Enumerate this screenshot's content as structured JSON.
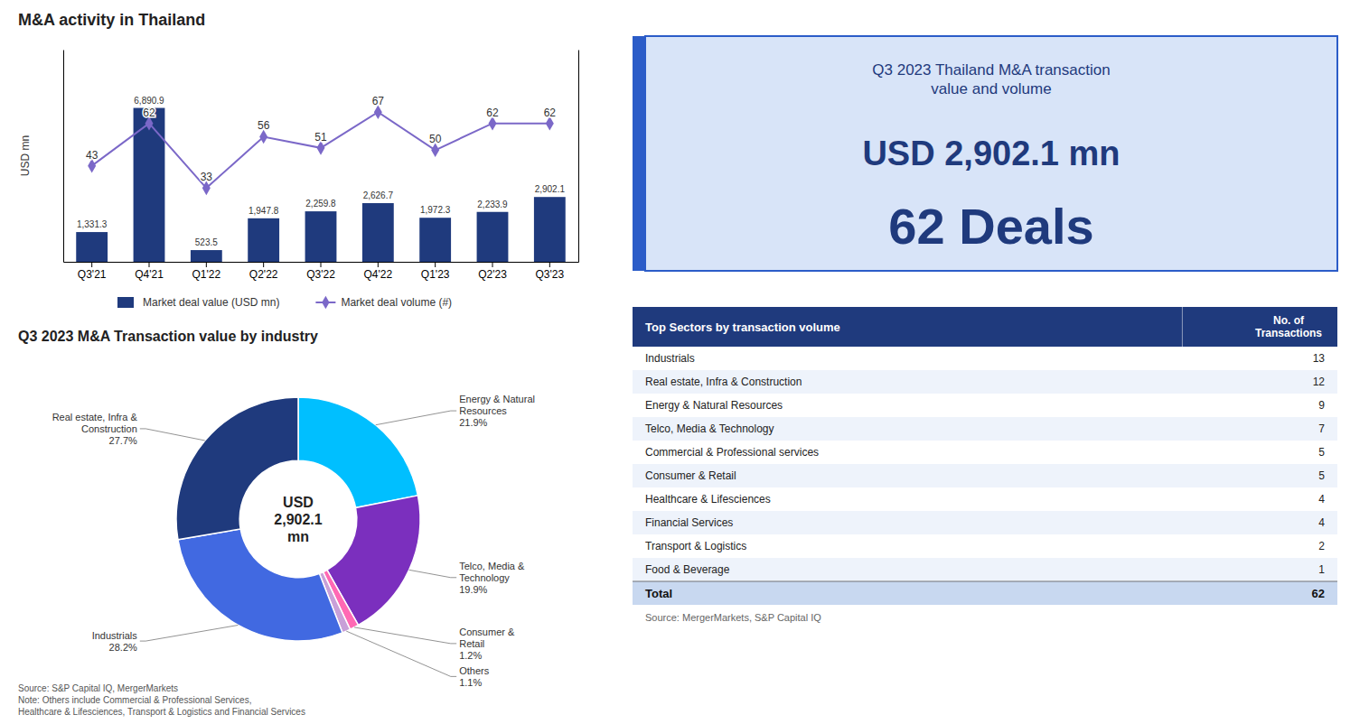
{
  "chart_data": [
    {
      "type": "bar",
      "title": "M&A activity in Thailand",
      "ylabel": "USD mn",
      "categories": [
        "Q3'21",
        "Q4'21",
        "Q1'22",
        "Q2'22",
        "Q3'22",
        "Q4'22",
        "Q1'23",
        "Q2'23",
        "Q3'23"
      ],
      "series": [
        {
          "name": "Market deal value (USD mn)",
          "type": "bar",
          "color": "#1F3A7D",
          "values": [
            1331.3,
            6890.9,
            523.5,
            1947.8,
            2259.8,
            2626.7,
            1972.3,
            2233.9,
            2902.1
          ],
          "value_labels": [
            "1,331.3",
            "6,890.9",
            "523.5",
            "1,947.8",
            "2,259.8",
            "2,626.7",
            "1,972.3",
            "2,233.9",
            "2,902.1"
          ]
        },
        {
          "name": "Market deal volume (#)",
          "type": "line",
          "color": "#7B68C8",
          "marker": "diamond",
          "axis": "y2",
          "values": [
            43,
            62,
            33,
            56,
            51,
            67,
            50,
            62,
            62
          ]
        }
      ],
      "ylim": [
        0,
        9500
      ],
      "y2lim": [
        0,
        95
      ],
      "tick_labels": "x",
      "data_labels": true,
      "legend": "bottom"
    },
    {
      "type": "donut",
      "title": "Q3 2023 M&A Transaction value by industry",
      "categories": [
        "Energy & Natural\nResources",
        "Telco, Media &\nTechnology",
        "Consumer &\nRetail",
        "Others",
        "Industrials",
        "Real estate, Infra &\nConstruction"
      ],
      "values": [
        21.9,
        19.9,
        1.2,
        1.1,
        28.2,
        27.7
      ],
      "value_labels": [
        "21.9%",
        "19.9%",
        "1.2%",
        "1.1%",
        "28.2%",
        "27.7%"
      ],
      "colors": [
        "#00BFFF",
        "#7B2FBE",
        "#FF69B4",
        "#C8A0D8",
        "#4169E1",
        "#1F3A7D"
      ],
      "data_labels": true,
      "annotation": "USD\n2,902.1\nmn",
      "source": "Source: S&P Capital IQ, MergerMarkets\nNote: Others include Commercial & Professional Services,\nHealthcare & Lifesciences, Transport & Logistics and Financial Services"
    },
    {
      "type": "info",
      "title": "Q3 2023 Thailand M&A transaction\nvalue and volume",
      "texts": [
        "USD 2,902.1 mn",
        "62 Deals"
      ],
      "colors": [
        "#2B5CC8",
        "#D8E4F8",
        "#1F3A7D"
      ]
    },
    {
      "type": "table",
      "columns": [
        "Top Sectors by transaction volume",
        "No. of\nTransactions"
      ],
      "rows": [
        [
          "Industrials",
          13
        ],
        [
          "Real estate, Infra & Construction",
          12
        ],
        [
          "Energy & Natural Resources",
          9
        ],
        [
          "Telco, Media & Technology",
          7
        ],
        [
          "Commercial & Professional services",
          5
        ],
        [
          "Consumer & Retail",
          5
        ],
        [
          "Healthcare & Lifesciences",
          4
        ],
        [
          "Financial Services",
          4
        ],
        [
          "Transport & Logistics",
          2
        ],
        [
          "Food & Beverage",
          1
        ]
      ],
      "total": [
        "Total",
        62
      ],
      "source": "Source: MergerMarkets, S&P Capital IQ",
      "colors": [
        "#1F3A7D",
        "#FFFFFF",
        "#FFFFFF",
        "#EEF3FB",
        "#C8D8F0"
      ]
    }
  ]
}
